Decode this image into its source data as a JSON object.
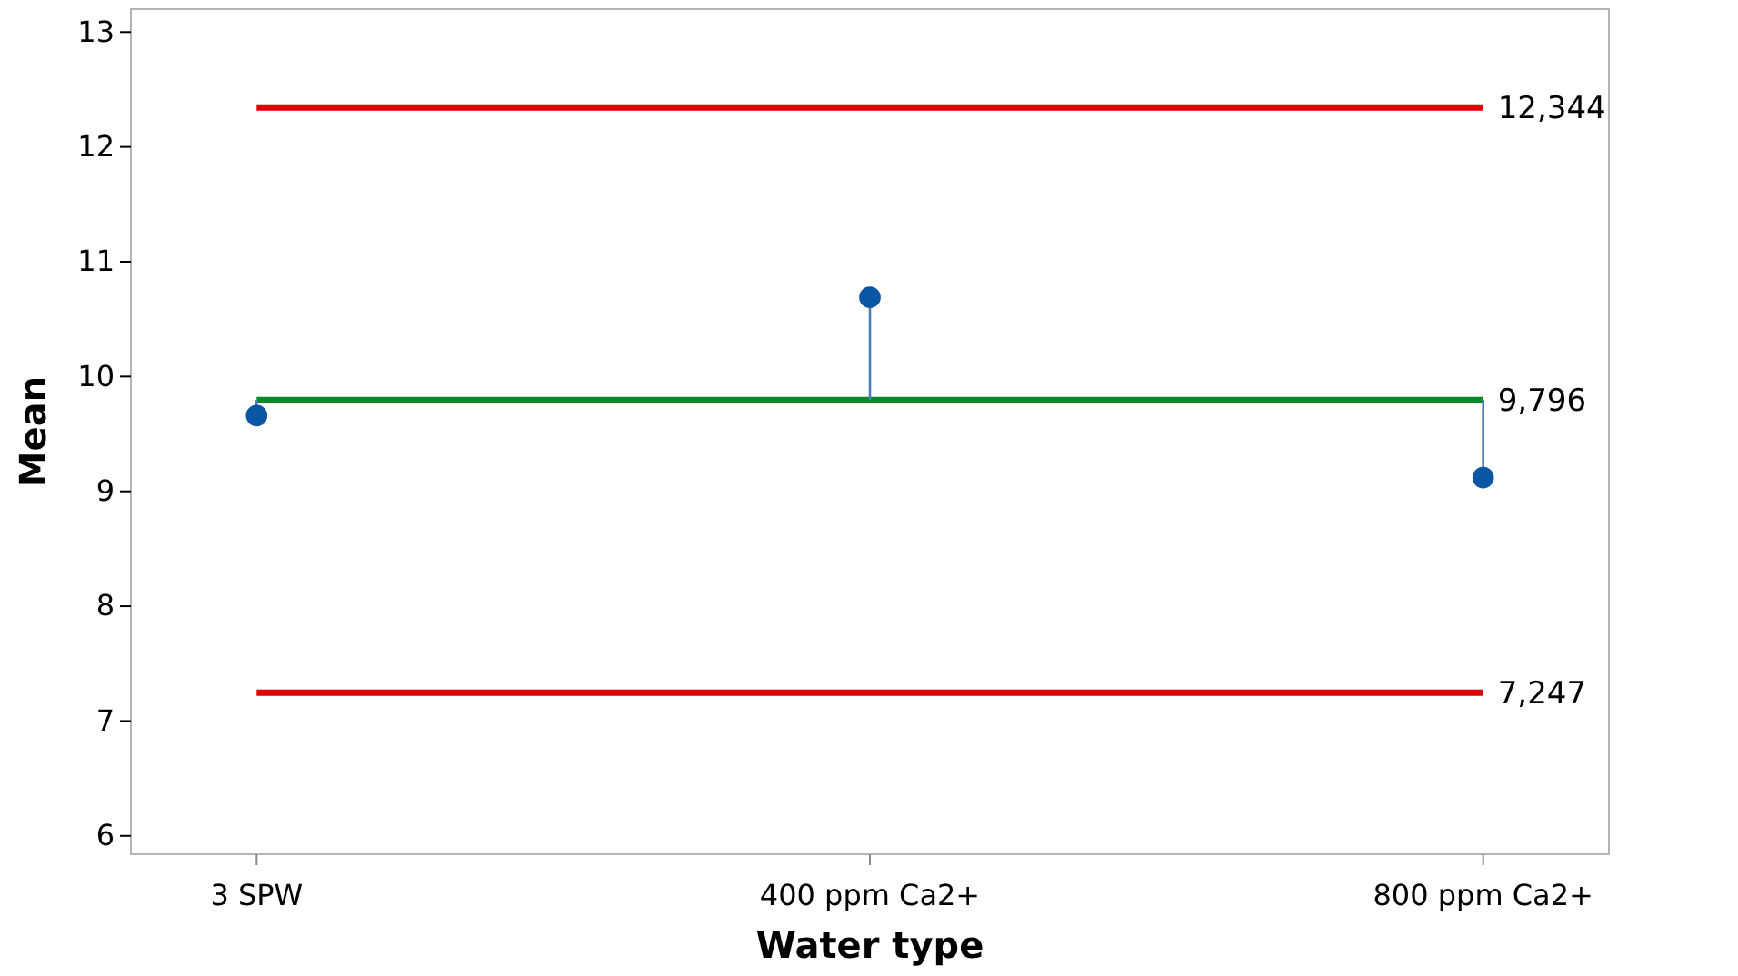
{
  "chart_data": {
    "type": "lollipop",
    "xlabel": "Water type",
    "ylabel": "Mean",
    "categories": [
      "3 SPW",
      "400 ppm Ca2+",
      "800 ppm Ca2+"
    ],
    "values": [
      9.66,
      10.69,
      9.12
    ],
    "errors": [
      [
        9.66,
        9.796
      ],
      [
        9.796,
        10.69
      ],
      [
        9.12,
        9.796
      ]
    ],
    "color": "#0b56a4",
    "marker": "circle",
    "ylim": [
      5.84,
      13.2
    ],
    "yticks": [
      6,
      7,
      8,
      9,
      10,
      11,
      12,
      13
    ],
    "grid": false,
    "ref_lines": [
      {
        "axis": "y",
        "value": 12.344,
        "label": "12,344",
        "color": "#e00000"
      },
      {
        "axis": "y",
        "value": 9.796,
        "label": "9,796",
        "color": "#0a8a2a"
      },
      {
        "axis": "y",
        "value": 7.247,
        "label": "7,247",
        "color": "#e00000"
      }
    ]
  }
}
